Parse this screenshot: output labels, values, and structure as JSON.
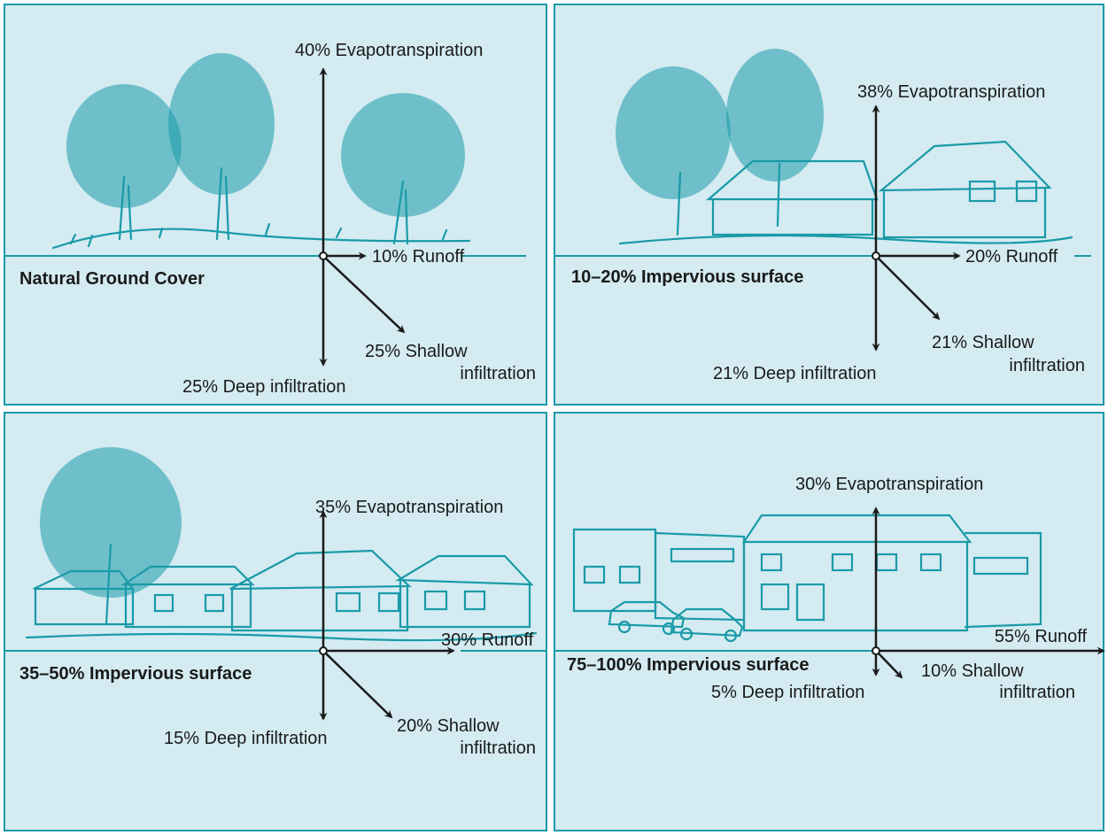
{
  "panels": [
    {
      "title": "Natural Ground Cover",
      "evapotranspiration": "40% Evapotranspiration",
      "runoff": "10% Runoff",
      "shallow_line1": "25% Shallow",
      "shallow_line2": "infiltration",
      "deep": "25% Deep infiltration"
    },
    {
      "title": "10–20% Impervious surface",
      "evapotranspiration": "38% Evapotranspiration",
      "runoff": "20% Runoff",
      "shallow_line1": "21% Shallow",
      "shallow_line2": "infiltration",
      "deep": "21% Deep infiltration"
    },
    {
      "title": "35–50% Impervious surface",
      "evapotranspiration": "35% Evapotranspiration",
      "runoff": "30% Runoff",
      "shallow_line1": "20% Shallow",
      "shallow_line2": "infiltration",
      "deep": "15% Deep infiltration"
    },
    {
      "title": "75–100% Impervious surface",
      "evapotranspiration": "30% Evapotranspiration",
      "runoff": "55% Runoff",
      "shallow_line1": "10% Shallow",
      "shallow_line2": "infiltration",
      "deep": "5% Deep infiltration"
    }
  ],
  "colors": {
    "panel_background": "#d4ebf1",
    "panel_border": "#1a9aa8",
    "sketch": "#1a9aa8",
    "arrows": "#1a1a1a"
  }
}
